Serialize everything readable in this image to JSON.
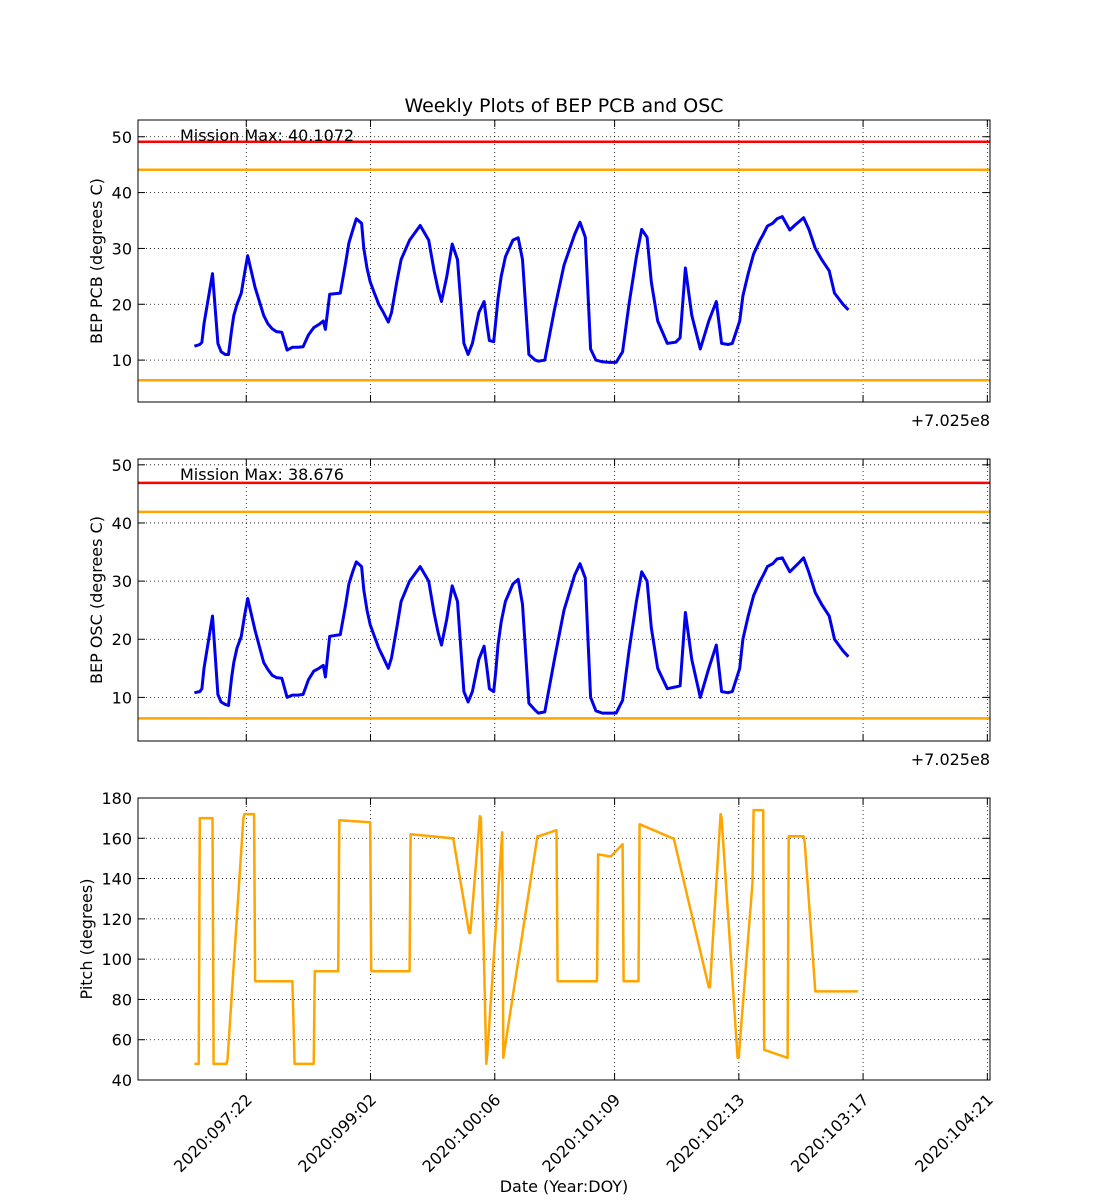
{
  "figure": {
    "title": "Weekly Plots of BEP PCB and OSC",
    "xlabel": "Date (Year:DOY)",
    "offset_label": "+7.025e8",
    "x_tick_labels": [
      "2020:097:22",
      "2020:099:02",
      "2020:100:06",
      "2020:101:09",
      "2020:102:13",
      "2020:103:17",
      "2020:104:21"
    ],
    "x_tick_days": [
      97.9167,
      99.0833,
      100.25,
      101.375,
      102.5417,
      103.7083,
      104.875
    ]
  },
  "colors": {
    "series": "#0000ee",
    "red_limit": "#ff0000",
    "yellow_limit": "#ffa500",
    "pitch": "#ffa500"
  },
  "chart_data": [
    {
      "type": "line",
      "ylabel": "BEP PCB (degrees C)",
      "ylim": [
        2.5,
        53
      ],
      "yticks": [
        10,
        20,
        30,
        40,
        50
      ],
      "annotation": "Mission Max: 40.1072",
      "limits": [
        {
          "kind": "red",
          "value": 49.1
        },
        {
          "kind": "yellow",
          "value": 44.1
        },
        {
          "kind": "yellow",
          "value": 6.4
        }
      ],
      "series": [
        {
          "x": [
            97.43,
            97.48,
            97.5,
            97.52,
            97.6,
            97.65,
            97.68,
            97.72,
            97.75,
            97.78,
            97.8,
            97.83,
            97.87,
            97.9,
            97.93,
            98.0,
            98.08,
            98.12,
            98.16,
            98.2,
            98.25,
            98.3,
            98.35,
            98.4,
            98.45,
            98.5,
            98.55,
            98.6,
            98.64,
            98.66,
            98.7,
            98.8,
            98.85,
            98.88,
            98.92,
            98.95,
            99.0,
            99.02,
            99.05,
            99.08,
            99.12,
            99.14,
            99.16,
            99.2,
            99.25,
            99.28,
            99.33,
            99.37,
            99.45,
            99.55,
            99.63,
            99.68,
            99.72,
            99.75,
            99.8,
            99.85,
            99.9,
            99.96,
            100.0,
            100.04,
            100.1,
            100.15,
            100.18,
            100.2,
            100.24,
            100.26,
            100.28,
            100.31,
            100.35,
            100.42,
            100.47,
            100.51,
            100.57,
            100.63,
            100.66,
            100.72,
            100.81,
            100.9,
            101.0,
            101.05,
            101.1,
            101.13,
            101.15,
            101.2,
            101.26,
            101.33,
            101.39,
            101.45,
            101.51,
            101.58,
            101.63,
            101.68,
            101.72,
            101.78,
            101.87,
            101.95,
            101.99,
            102.04,
            102.1,
            102.18,
            102.26,
            102.33,
            102.38,
            102.44,
            102.48,
            102.55,
            102.58,
            102.63,
            102.68,
            102.74,
            102.77,
            102.81,
            102.86,
            102.9,
            102.95,
            103.02,
            103.07,
            103.12,
            103.15,
            103.2,
            103.26,
            103.32,
            103.39,
            103.44,
            103.52,
            103.57
          ],
          "y": [
            12.5,
            12.8,
            13.2,
            16.5,
            25.5,
            13.0,
            11.5,
            11.0,
            11.0,
            15.5,
            18.0,
            20.0,
            22.0,
            25.5,
            28.7,
            23.0,
            18.0,
            16.5,
            15.6,
            15.1,
            15.0,
            11.8,
            12.3,
            12.3,
            12.4,
            14.5,
            15.8,
            16.4,
            17.0,
            15.5,
            21.8,
            22.0,
            27.5,
            31.0,
            33.5,
            35.3,
            34.5,
            30.0,
            26.5,
            24.0,
            22.0,
            21.0,
            20.0,
            18.7,
            16.8,
            18.5,
            24.0,
            28.0,
            31.5,
            34.1,
            31.5,
            26.0,
            22.5,
            20.5,
            25.0,
            30.8,
            28.0,
            13.0,
            11.0,
            13.0,
            18.5,
            20.5,
            16.0,
            13.5,
            13.3,
            17.0,
            21.0,
            25.0,
            28.5,
            31.5,
            31.9,
            28.0,
            11.0,
            10.0,
            9.8,
            10.0,
            19.0,
            27.0,
            32.5,
            34.7,
            32.0,
            20.0,
            12.0,
            10.0,
            9.7,
            9.6,
            9.6,
            11.5,
            20.0,
            28.5,
            33.4,
            32.0,
            24.0,
            17.0,
            13.0,
            13.2,
            14.0,
            26.5,
            18.0,
            12.0,
            17.0,
            20.5,
            13.0,
            12.8,
            13.0,
            17.0,
            21.5,
            25.5,
            29.0,
            31.5,
            32.5,
            34.0,
            34.5,
            35.3,
            35.7,
            33.3,
            34.2,
            35.0,
            35.5,
            33.4,
            30.0,
            28.0,
            26.0,
            22.0,
            20.0,
            19.0
          ]
        }
      ]
    },
    {
      "type": "line",
      "ylabel": "BEP OSC (degrees C)",
      "ylim": [
        2.5,
        51
      ],
      "yticks": [
        10,
        20,
        30,
        40,
        50
      ],
      "annotation": "Mission Max: 38.676",
      "limits": [
        {
          "kind": "red",
          "value": 46.9
        },
        {
          "kind": "yellow",
          "value": 41.9
        },
        {
          "kind": "yellow",
          "value": 6.4
        }
      ],
      "series": [
        {
          "x": [
            97.43,
            97.48,
            97.5,
            97.52,
            97.6,
            97.65,
            97.68,
            97.72,
            97.75,
            97.78,
            97.8,
            97.83,
            97.87,
            97.9,
            97.93,
            98.0,
            98.08,
            98.12,
            98.16,
            98.2,
            98.25,
            98.3,
            98.35,
            98.4,
            98.45,
            98.5,
            98.55,
            98.6,
            98.64,
            98.66,
            98.7,
            98.8,
            98.85,
            98.88,
            98.92,
            98.95,
            99.0,
            99.02,
            99.05,
            99.08,
            99.12,
            99.14,
            99.16,
            99.2,
            99.25,
            99.28,
            99.33,
            99.37,
            99.45,
            99.55,
            99.63,
            99.68,
            99.72,
            99.75,
            99.8,
            99.85,
            99.9,
            99.96,
            100.0,
            100.04,
            100.1,
            100.15,
            100.18,
            100.2,
            100.24,
            100.26,
            100.28,
            100.31,
            100.35,
            100.42,
            100.47,
            100.51,
            100.57,
            100.63,
            100.66,
            100.72,
            100.81,
            100.9,
            101.0,
            101.05,
            101.1,
            101.13,
            101.15,
            101.2,
            101.26,
            101.33,
            101.39,
            101.45,
            101.51,
            101.58,
            101.63,
            101.68,
            101.72,
            101.78,
            101.87,
            101.95,
            101.99,
            102.04,
            102.1,
            102.18,
            102.26,
            102.33,
            102.38,
            102.44,
            102.48,
            102.55,
            102.58,
            102.63,
            102.68,
            102.74,
            102.77,
            102.81,
            102.86,
            102.9,
            102.95,
            103.02,
            103.07,
            103.12,
            103.15,
            103.2,
            103.26,
            103.32,
            103.39,
            103.44,
            103.52,
            103.57
          ],
          "y": [
            10.8,
            11.0,
            11.5,
            15.0,
            24.0,
            10.5,
            9.2,
            8.8,
            8.6,
            13.5,
            16.0,
            18.5,
            20.5,
            24.0,
            27.0,
            21.5,
            16.0,
            14.8,
            13.8,
            13.4,
            13.3,
            10.0,
            10.4,
            10.4,
            10.5,
            13.0,
            14.5,
            15.0,
            15.5,
            13.5,
            20.5,
            20.8,
            26.0,
            29.5,
            31.8,
            33.3,
            32.5,
            28.5,
            25.0,
            22.5,
            20.5,
            19.5,
            18.5,
            17.0,
            15.0,
            16.8,
            22.0,
            26.5,
            30.0,
            32.5,
            30.0,
            24.5,
            21.0,
            19.0,
            23.5,
            29.2,
            26.5,
            11.0,
            9.2,
            11.0,
            16.5,
            18.8,
            14.5,
            11.5,
            11.0,
            14.5,
            19.0,
            23.0,
            26.5,
            29.5,
            30.3,
            26.0,
            9.0,
            7.8,
            7.3,
            7.5,
            16.5,
            25.0,
            31.0,
            33.0,
            30.5,
            18.0,
            10.0,
            7.7,
            7.3,
            7.3,
            7.3,
            9.5,
            18.0,
            26.5,
            31.6,
            30.0,
            22.0,
            15.0,
            11.5,
            11.8,
            12.0,
            24.6,
            16.5,
            10.0,
            15.0,
            19.0,
            11.0,
            10.8,
            11.0,
            15.0,
            20.0,
            24.0,
            27.5,
            30.0,
            31.0,
            32.5,
            33.0,
            33.8,
            34.0,
            31.6,
            32.5,
            33.4,
            34.0,
            31.5,
            28.0,
            26.0,
            24.0,
            20.0,
            18.0,
            17.0
          ]
        }
      ]
    },
    {
      "type": "line",
      "ylabel": "Pitch (degrees)",
      "ylim": [
        40,
        180
      ],
      "yticks": [
        40,
        60,
        80,
        100,
        120,
        140,
        160,
        180
      ],
      "series": [
        {
          "x": [
            97.43,
            97.47,
            97.48,
            97.6,
            97.61,
            97.73,
            97.74,
            97.89,
            97.9,
            97.99,
            98.0,
            98.35,
            98.37,
            98.55,
            98.56,
            98.78,
            98.79,
            99.08,
            99.09,
            99.45,
            99.46,
            99.85,
            99.86,
            100.01,
            100.02,
            100.11,
            100.12,
            100.17,
            100.18,
            100.32,
            100.33,
            100.65,
            100.66,
            100.83,
            100.84,
            101.21,
            101.22,
            101.33,
            101.34,
            101.45,
            101.46,
            101.6,
            101.61,
            101.92,
            101.93,
            102.26,
            102.27,
            102.37,
            102.38,
            102.53,
            102.54,
            102.67,
            102.68,
            102.77,
            102.78,
            103.0,
            103.01,
            103.15,
            103.16,
            103.26,
            103.27,
            103.56,
            103.57,
            103.66
          ],
          "y": [
            48,
            48,
            170,
            170,
            48,
            48,
            50,
            170,
            172,
            172,
            89,
            89,
            48,
            48,
            94,
            94,
            169,
            168,
            94,
            94,
            162,
            160,
            160,
            113,
            113,
            171,
            170,
            48,
            53,
            163,
            51,
            161,
            161,
            164,
            89,
            89,
            152,
            151,
            151,
            157,
            89,
            89,
            167,
            160,
            160,
            86,
            86,
            172,
            170,
            51,
            51,
            138,
            174,
            174,
            55,
            51,
            161,
            161,
            158,
            84,
            84,
            84,
            84,
            84
          ]
        }
      ]
    }
  ]
}
